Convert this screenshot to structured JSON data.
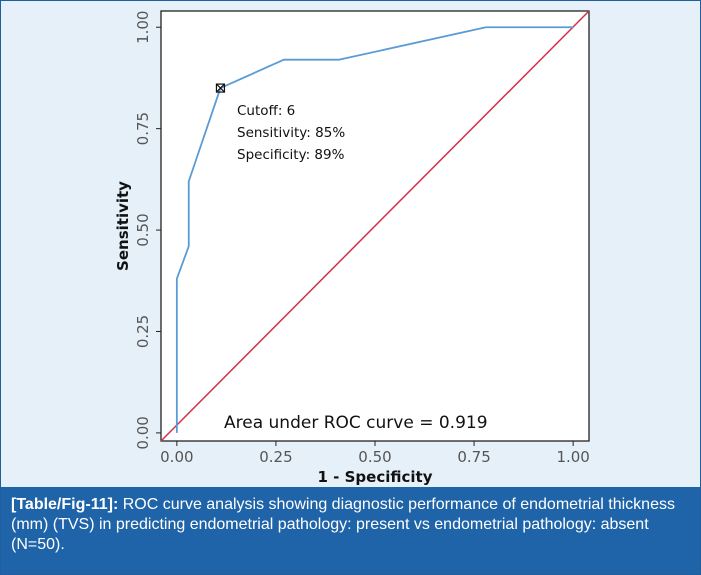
{
  "chart_data": {
    "type": "line",
    "xlabel": "1 - Specificity",
    "ylabel": "Sensitivity",
    "xlim": [
      -0.04,
      1.04
    ],
    "ylim": [
      -0.02,
      1.04
    ],
    "x_ticks": [
      "0.00",
      "0.25",
      "0.50",
      "0.75",
      "1.00"
    ],
    "y_ticks": [
      "0.00",
      "0.25",
      "0.50",
      "0.75",
      "1.00"
    ],
    "series": [
      {
        "color": "#5b9bd5",
        "points": [
          [
            0.0,
            0.0
          ],
          [
            0.0,
            0.38
          ],
          [
            0.03,
            0.46
          ],
          [
            0.03,
            0.62
          ],
          [
            0.11,
            0.85
          ],
          [
            0.27,
            0.92
          ],
          [
            0.41,
            0.92
          ],
          [
            0.78,
            1.0
          ],
          [
            1.0,
            1.0
          ]
        ]
      },
      {
        "color": "#d1304a",
        "points": [
          [
            -0.04,
            -0.02
          ],
          [
            1.04,
            1.04
          ]
        ]
      }
    ],
    "cutoff_point": {
      "x": 0.11,
      "y": 0.85
    },
    "annotations": [
      "Cutoff: 6",
      "Sensitivity: 85%",
      "Specificity: 89%"
    ],
    "auc_text": "Area under ROC curve =  0.919",
    "grid": false
  },
  "caption": {
    "label": "[Table/Fig-11]:",
    "text": " ROC curve analysis showing diagnostic performance of endometrial thickness (mm) (TVS) in predicting endometrial pathology: present vs endometrial pathology: absent (N=50)."
  }
}
